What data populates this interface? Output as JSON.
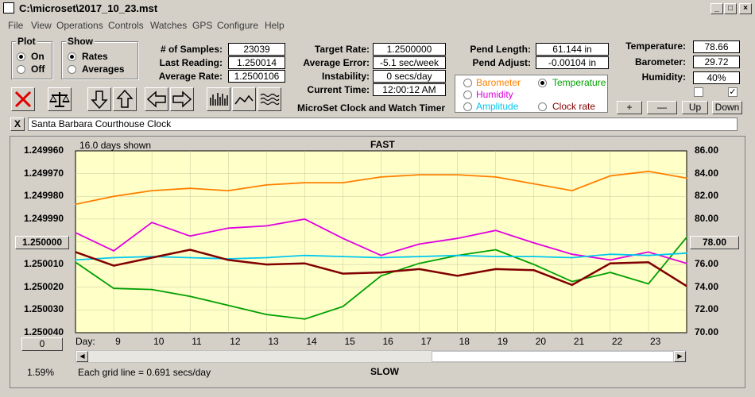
{
  "window": {
    "title": "C:\\microset\\2017_10_23.mst"
  },
  "menu": [
    "File",
    "View",
    "Operations",
    "Controls",
    "Watches",
    "GPS",
    "Configure",
    "Help"
  ],
  "plot_group": {
    "title": "Plot",
    "options": [
      "On",
      "Off"
    ],
    "selected": "On"
  },
  "show_group": {
    "title": "Show",
    "options": [
      "Rates",
      "Averages"
    ],
    "selected": "Rates"
  },
  "stats": {
    "samples_label": "# of Samples:",
    "samples": "23039",
    "last_label": "Last Reading:",
    "last": "1.250014",
    "avg_label": "Average Rate:",
    "avg": "1.2500106"
  },
  "rates": {
    "target_label": "Target Rate:",
    "target": "1.2500000",
    "error_label": "Average Error:",
    "error": "-5.1 sec/week",
    "instab_label": "Instability:",
    "instab": "0 secs/day",
    "time_label": "Current Time:",
    "time": "12:00:12 AM"
  },
  "app_name": "MicroSet Clock and Watch Timer",
  "pend": {
    "length_label": "Pend Length:",
    "length": "61.144 in",
    "adjust_label": "Pend Adjust:",
    "adjust": "-0.00104 in"
  },
  "env": {
    "temp_label": "Temperature:",
    "temp": "78.66",
    "baro_label": "Barometer:",
    "baro": "29.72",
    "hum_label": "Humidity:",
    "hum": "40%"
  },
  "legend": [
    {
      "label": "Barometer",
      "color": "#ff8000",
      "selected": false
    },
    {
      "label": "Temperature",
      "color": "#00a000",
      "selected": true
    },
    {
      "label": "Humidity",
      "color": "#e000e0",
      "selected": false
    },
    {
      "label": "Amplitude",
      "color": "#00c8f0",
      "selected": false
    },
    {
      "label": "Clock rate",
      "color": "#800000",
      "selected": false
    }
  ],
  "scale_buttons": {
    "plus": "+",
    "minus": "—",
    "up": "Up",
    "down": "Down"
  },
  "clock_name": "Santa Barbara Courthouse Clock",
  "close_x": "X",
  "chart_data": {
    "type": "line",
    "top_label": "FAST",
    "bottom_label": "SLOW",
    "days_shown": "16.0 days shown",
    "grid_note": "Each grid line = 0.691 secs/day",
    "day_label": "Day:",
    "x": [
      8,
      9,
      10,
      11,
      12,
      13,
      14,
      15,
      16,
      17,
      18,
      19,
      20,
      21,
      22,
      23,
      24
    ],
    "xticks": [
      "9",
      "10",
      "11",
      "12",
      "13",
      "14",
      "15",
      "16",
      "17",
      "18",
      "19",
      "20",
      "21",
      "22",
      "23"
    ],
    "yleft_ticks": [
      "1.249960",
      "1.249970",
      "1.249980",
      "1.249990",
      "1.250000",
      "1.250010",
      "1.250020",
      "1.250030",
      "1.250040"
    ],
    "yright_ticks": [
      "86.00",
      "84.00",
      "82.00",
      "80.00",
      "78.00",
      "76.00",
      "74.00",
      "72.00",
      "70.00"
    ],
    "yleft_button": "1.250000",
    "yright_button": "78.00",
    "x_left_button": "0",
    "bottom_pct": "1.59%",
    "plot_bg": "#ffffc8",
    "series": [
      {
        "name": "Barometer",
        "color": "#ff8000",
        "values": [
          81.3,
          82.0,
          82.5,
          82.7,
          82.5,
          83.0,
          83.2,
          83.2,
          83.7,
          83.9,
          83.9,
          83.7,
          83.1,
          82.5,
          83.8,
          84.2,
          83.6
        ]
      },
      {
        "name": "Temperature",
        "color": "#00a000",
        "values": [
          76.2,
          73.9,
          73.8,
          73.2,
          72.4,
          71.6,
          71.2,
          72.3,
          75.0,
          76.1,
          76.8,
          77.3,
          76.0,
          74.5,
          75.3,
          74.3,
          78.4
        ]
      },
      {
        "name": "Humidity",
        "color": "#e000e0",
        "values": [
          78.8,
          77.2,
          79.7,
          78.5,
          79.2,
          79.4,
          80.0,
          78.3,
          76.8,
          77.8,
          78.3,
          79.0,
          77.9,
          76.9,
          76.4,
          77.1,
          76.1
        ]
      },
      {
        "name": "Amplitude",
        "color": "#00c8f0",
        "values": [
          76.4,
          76.6,
          76.7,
          76.6,
          76.5,
          76.6,
          76.8,
          76.7,
          76.6,
          76.7,
          76.8,
          76.7,
          76.7,
          76.6,
          76.9,
          76.8,
          77.0
        ]
      },
      {
        "name": "Clock rate",
        "color": "#800000",
        "values": [
          77.1,
          75.9,
          76.6,
          77.3,
          76.4,
          76.0,
          76.1,
          75.2,
          75.3,
          75.6,
          75.0,
          75.6,
          75.5,
          74.2,
          76.1,
          76.2,
          74.1
        ]
      }
    ],
    "yleft_range": [
      1.24996,
      1.25004
    ],
    "yright_range": [
      70,
      86
    ]
  }
}
